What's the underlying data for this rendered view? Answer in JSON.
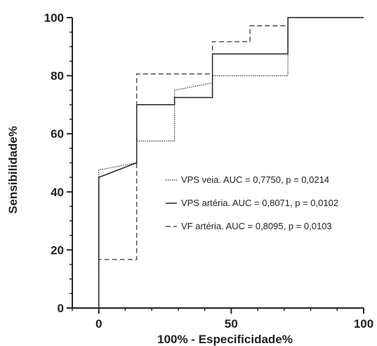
{
  "chart_data": {
    "type": "line",
    "title": "",
    "xlabel": "100% - Especificidade%",
    "ylabel": "Sensibilidade%",
    "xlim": [
      -10,
      100
    ],
    "ylim": [
      0,
      100
    ],
    "x_ticks": [
      0,
      50,
      100
    ],
    "y_ticks": [
      0,
      20,
      40,
      60,
      80,
      100
    ],
    "grid": false,
    "legend_position": "right",
    "series": [
      {
        "name": "VPS veia. AUC = 0,7750, p = 0,0214",
        "style": "dotted",
        "color": "#333333",
        "x": [
          0,
          0,
          14.3,
          14.3,
          28.6,
          28.6,
          42.9,
          42.9,
          71.4,
          71.4,
          100
        ],
        "y": [
          0,
          47.5,
          50,
          57.5,
          57.5,
          75,
          77.5,
          80,
          80,
          100,
          100
        ]
      },
      {
        "name": "VPS artéria. AUC = 0,8071, p = 0,0102",
        "style": "solid",
        "color": "#222222",
        "x": [
          0,
          0,
          14.3,
          14.3,
          28.6,
          28.6,
          42.9,
          42.9,
          71.4,
          71.4,
          100
        ],
        "y": [
          0,
          45,
          50,
          70,
          70,
          72.5,
          72.5,
          87.5,
          87.5,
          100,
          100
        ]
      },
      {
        "name": "VF artéria. AUC = 0,8095, p = 0,0103",
        "style": "dashed",
        "color": "#333333",
        "x": [
          0,
          0,
          14.3,
          14.3,
          42.9,
          42.9,
          57.1,
          57.1,
          71.4,
          71.4,
          100
        ],
        "y": [
          0,
          16.7,
          16.7,
          80.6,
          80.6,
          91.7,
          91.7,
          97.2,
          97.2,
          100,
          100
        ]
      }
    ]
  }
}
